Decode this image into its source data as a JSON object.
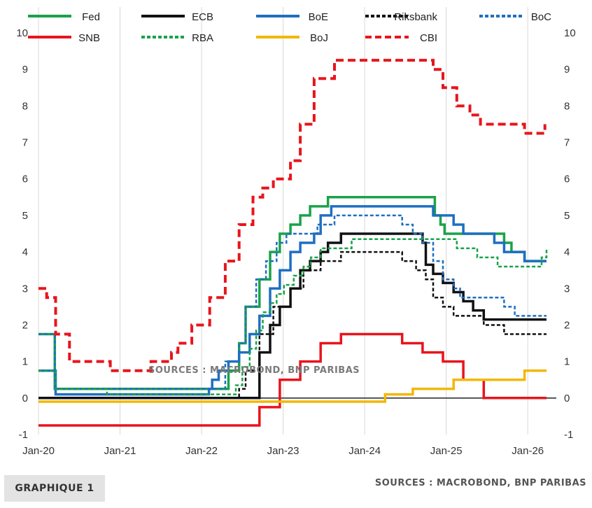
{
  "chart_data": {
    "type": "line",
    "step": true,
    "ylim": [
      -1,
      10
    ],
    "yticks": [
      "-1",
      "0",
      "1",
      "2",
      "3",
      "4",
      "5",
      "6",
      "7",
      "8",
      "9",
      "10"
    ],
    "xlim": [
      "2020-01",
      "2026-04"
    ],
    "xticks": [
      "Jan-20",
      "Jan-21",
      "Jan-22",
      "Jan-23",
      "Jan-24",
      "Jan-25",
      "Jan-26"
    ],
    "source_watermark": "SOURCES : MACROBOND, BNP PARIBAS",
    "series": [
      {
        "name": "Fed",
        "color": "#1aa24a",
        "dash": "solid",
        "points": [
          [
            2020.0,
            1.75
          ],
          [
            2020.17,
            1.75
          ],
          [
            2020.2,
            0.25
          ],
          [
            2022.2,
            0.25
          ],
          [
            2022.33,
            0.75
          ],
          [
            2022.46,
            1.5
          ],
          [
            2022.54,
            2.5
          ],
          [
            2022.71,
            3.25
          ],
          [
            2022.84,
            4.0
          ],
          [
            2022.96,
            4.5
          ],
          [
            2023.09,
            4.75
          ],
          [
            2023.21,
            5.0
          ],
          [
            2023.33,
            5.25
          ],
          [
            2023.55,
            5.5
          ],
          [
            2024.71,
            5.5
          ],
          [
            2024.86,
            5.0
          ],
          [
            2024.93,
            4.75
          ],
          [
            2024.98,
            4.5
          ],
          [
            2025.71,
            4.25
          ],
          [
            2025.8,
            4.0
          ],
          [
            2025.96,
            3.75
          ],
          [
            2026.23,
            3.75
          ]
        ]
      },
      {
        "name": "ECB",
        "color": "#111111",
        "dash": "solid",
        "points": [
          [
            2020.0,
            0.0
          ],
          [
            2022.54,
            0.0
          ],
          [
            2022.71,
            1.25
          ],
          [
            2022.84,
            2.0
          ],
          [
            2022.96,
            2.5
          ],
          [
            2023.09,
            3.0
          ],
          [
            2023.21,
            3.5
          ],
          [
            2023.33,
            3.75
          ],
          [
            2023.46,
            4.0
          ],
          [
            2023.55,
            4.25
          ],
          [
            2023.71,
            4.5
          ],
          [
            2024.45,
            4.5
          ],
          [
            2024.71,
            4.25
          ],
          [
            2024.75,
            3.65
          ],
          [
            2024.84,
            3.4
          ],
          [
            2024.96,
            3.15
          ],
          [
            2025.09,
            2.9
          ],
          [
            2025.21,
            2.65
          ],
          [
            2025.33,
            2.4
          ],
          [
            2025.46,
            2.15
          ],
          [
            2026.23,
            2.15
          ]
        ]
      },
      {
        "name": "BoE",
        "color": "#1f6fc0",
        "dash": "solid",
        "points": [
          [
            2020.0,
            0.75
          ],
          [
            2020.17,
            0.75
          ],
          [
            2020.21,
            0.1
          ],
          [
            2021.96,
            0.1
          ],
          [
            2022.09,
            0.25
          ],
          [
            2022.13,
            0.5
          ],
          [
            2022.21,
            0.75
          ],
          [
            2022.33,
            1.0
          ],
          [
            2022.46,
            1.25
          ],
          [
            2022.59,
            1.75
          ],
          [
            2022.71,
            2.25
          ],
          [
            2022.84,
            3.0
          ],
          [
            2022.96,
            3.5
          ],
          [
            2023.09,
            4.0
          ],
          [
            2023.21,
            4.25
          ],
          [
            2023.38,
            4.5
          ],
          [
            2023.46,
            5.0
          ],
          [
            2023.59,
            5.25
          ],
          [
            2024.59,
            5.25
          ],
          [
            2024.84,
            5.0
          ],
          [
            2025.09,
            4.75
          ],
          [
            2025.21,
            4.5
          ],
          [
            2025.59,
            4.25
          ],
          [
            2025.71,
            4.0
          ],
          [
            2025.96,
            3.75
          ],
          [
            2026.23,
            3.75
          ]
        ]
      },
      {
        "name": "Riksbank",
        "color": "#111111",
        "dash": "dash-fine",
        "points": [
          [
            2020.0,
            0.0
          ],
          [
            2022.33,
            0.0
          ],
          [
            2022.46,
            0.25
          ],
          [
            2022.54,
            0.75
          ],
          [
            2022.71,
            1.75
          ],
          [
            2022.88,
            2.5
          ],
          [
            2023.09,
            3.0
          ],
          [
            2023.25,
            3.5
          ],
          [
            2023.46,
            3.75
          ],
          [
            2023.71,
            4.0
          ],
          [
            2024.38,
            4.0
          ],
          [
            2024.46,
            3.75
          ],
          [
            2024.63,
            3.5
          ],
          [
            2024.75,
            3.25
          ],
          [
            2024.84,
            2.75
          ],
          [
            2024.96,
            2.5
          ],
          [
            2025.09,
            2.25
          ],
          [
            2025.46,
            2.0
          ],
          [
            2025.71,
            1.75
          ],
          [
            2026.23,
            1.75
          ]
        ]
      },
      {
        "name": "BoC",
        "color": "#1f6fc0",
        "dash": "dash-fine",
        "points": [
          [
            2020.0,
            1.75
          ],
          [
            2020.17,
            1.75
          ],
          [
            2020.2,
            0.25
          ],
          [
            2022.17,
            0.25
          ],
          [
            2022.29,
            1.0
          ],
          [
            2022.46,
            1.5
          ],
          [
            2022.54,
            2.5
          ],
          [
            2022.67,
            3.25
          ],
          [
            2022.79,
            3.75
          ],
          [
            2022.92,
            4.25
          ],
          [
            2023.04,
            4.5
          ],
          [
            2023.42,
            4.75
          ],
          [
            2023.63,
            5.0
          ],
          [
            2024.42,
            5.0
          ],
          [
            2024.46,
            4.75
          ],
          [
            2024.59,
            4.5
          ],
          [
            2024.71,
            4.25
          ],
          [
            2024.84,
            3.75
          ],
          [
            2024.96,
            3.25
          ],
          [
            2025.09,
            3.0
          ],
          [
            2025.17,
            2.75
          ],
          [
            2025.71,
            2.5
          ],
          [
            2025.84,
            2.25
          ],
          [
            2026.23,
            2.25
          ]
        ]
      },
      {
        "name": "SNB",
        "color": "#e8141c",
        "dash": "solid",
        "points": [
          [
            2020.0,
            -0.75
          ],
          [
            2022.46,
            -0.75
          ],
          [
            2022.71,
            -0.25
          ],
          [
            2022.96,
            0.5
          ],
          [
            2023.21,
            1.0
          ],
          [
            2023.46,
            1.5
          ],
          [
            2023.71,
            1.75
          ],
          [
            2024.21,
            1.75
          ],
          [
            2024.46,
            1.5
          ],
          [
            2024.71,
            1.25
          ],
          [
            2024.96,
            1.0
          ],
          [
            2025.21,
            0.5
          ],
          [
            2025.46,
            0.0
          ],
          [
            2026.23,
            0.0
          ]
        ]
      },
      {
        "name": "RBA",
        "color": "#1aa24a",
        "dash": "dash-fine",
        "points": [
          [
            2020.0,
            0.75
          ],
          [
            2020.17,
            0.75
          ],
          [
            2020.21,
            0.25
          ],
          [
            2020.84,
            0.1
          ],
          [
            2022.34,
            0.1
          ],
          [
            2022.42,
            0.35
          ],
          [
            2022.5,
            0.85
          ],
          [
            2022.59,
            1.35
          ],
          [
            2022.67,
            1.85
          ],
          [
            2022.75,
            2.35
          ],
          [
            2022.84,
            2.6
          ],
          [
            2022.92,
            2.85
          ],
          [
            2023.01,
            3.1
          ],
          [
            2023.13,
            3.35
          ],
          [
            2023.25,
            3.6
          ],
          [
            2023.34,
            3.85
          ],
          [
            2023.46,
            4.1
          ],
          [
            2023.84,
            4.35
          ],
          [
            2025.13,
            4.1
          ],
          [
            2025.38,
            3.85
          ],
          [
            2025.63,
            3.6
          ],
          [
            2026.09,
            3.6
          ],
          [
            2026.17,
            3.85
          ],
          [
            2026.23,
            4.1
          ]
        ]
      },
      {
        "name": "BoJ",
        "color": "#f2b705",
        "dash": "solid",
        "points": [
          [
            2020.0,
            -0.1
          ],
          [
            2024.21,
            -0.1
          ],
          [
            2024.25,
            0.1
          ],
          [
            2024.59,
            0.25
          ],
          [
            2025.09,
            0.5
          ],
          [
            2025.96,
            0.75
          ],
          [
            2026.23,
            0.75
          ]
        ]
      },
      {
        "name": "CBI",
        "color": "#e8141c",
        "dash": "dash-bold",
        "points": [
          [
            2020.0,
            3.0
          ],
          [
            2020.1,
            2.75
          ],
          [
            2020.21,
            1.75
          ],
          [
            2020.38,
            1.0
          ],
          [
            2020.88,
            0.75
          ],
          [
            2021.38,
            1.0
          ],
          [
            2021.63,
            1.25
          ],
          [
            2021.71,
            1.5
          ],
          [
            2021.88,
            2.0
          ],
          [
            2022.1,
            2.75
          ],
          [
            2022.29,
            3.75
          ],
          [
            2022.46,
            4.75
          ],
          [
            2022.63,
            5.5
          ],
          [
            2022.75,
            5.75
          ],
          [
            2022.88,
            6.0
          ],
          [
            2023.09,
            6.5
          ],
          [
            2023.21,
            7.5
          ],
          [
            2023.38,
            8.75
          ],
          [
            2023.63,
            9.25
          ],
          [
            2024.71,
            9.25
          ],
          [
            2024.84,
            9.0
          ],
          [
            2024.96,
            8.5
          ],
          [
            2025.13,
            8.0
          ],
          [
            2025.29,
            7.75
          ],
          [
            2025.42,
            7.5
          ],
          [
            2025.96,
            7.25
          ],
          [
            2026.21,
            7.5
          ]
        ]
      }
    ]
  },
  "footer": {
    "graph_label": "GRAPHIQUE 1",
    "source": "SOURCES : MACROBOND, BNP PARIBAS"
  }
}
